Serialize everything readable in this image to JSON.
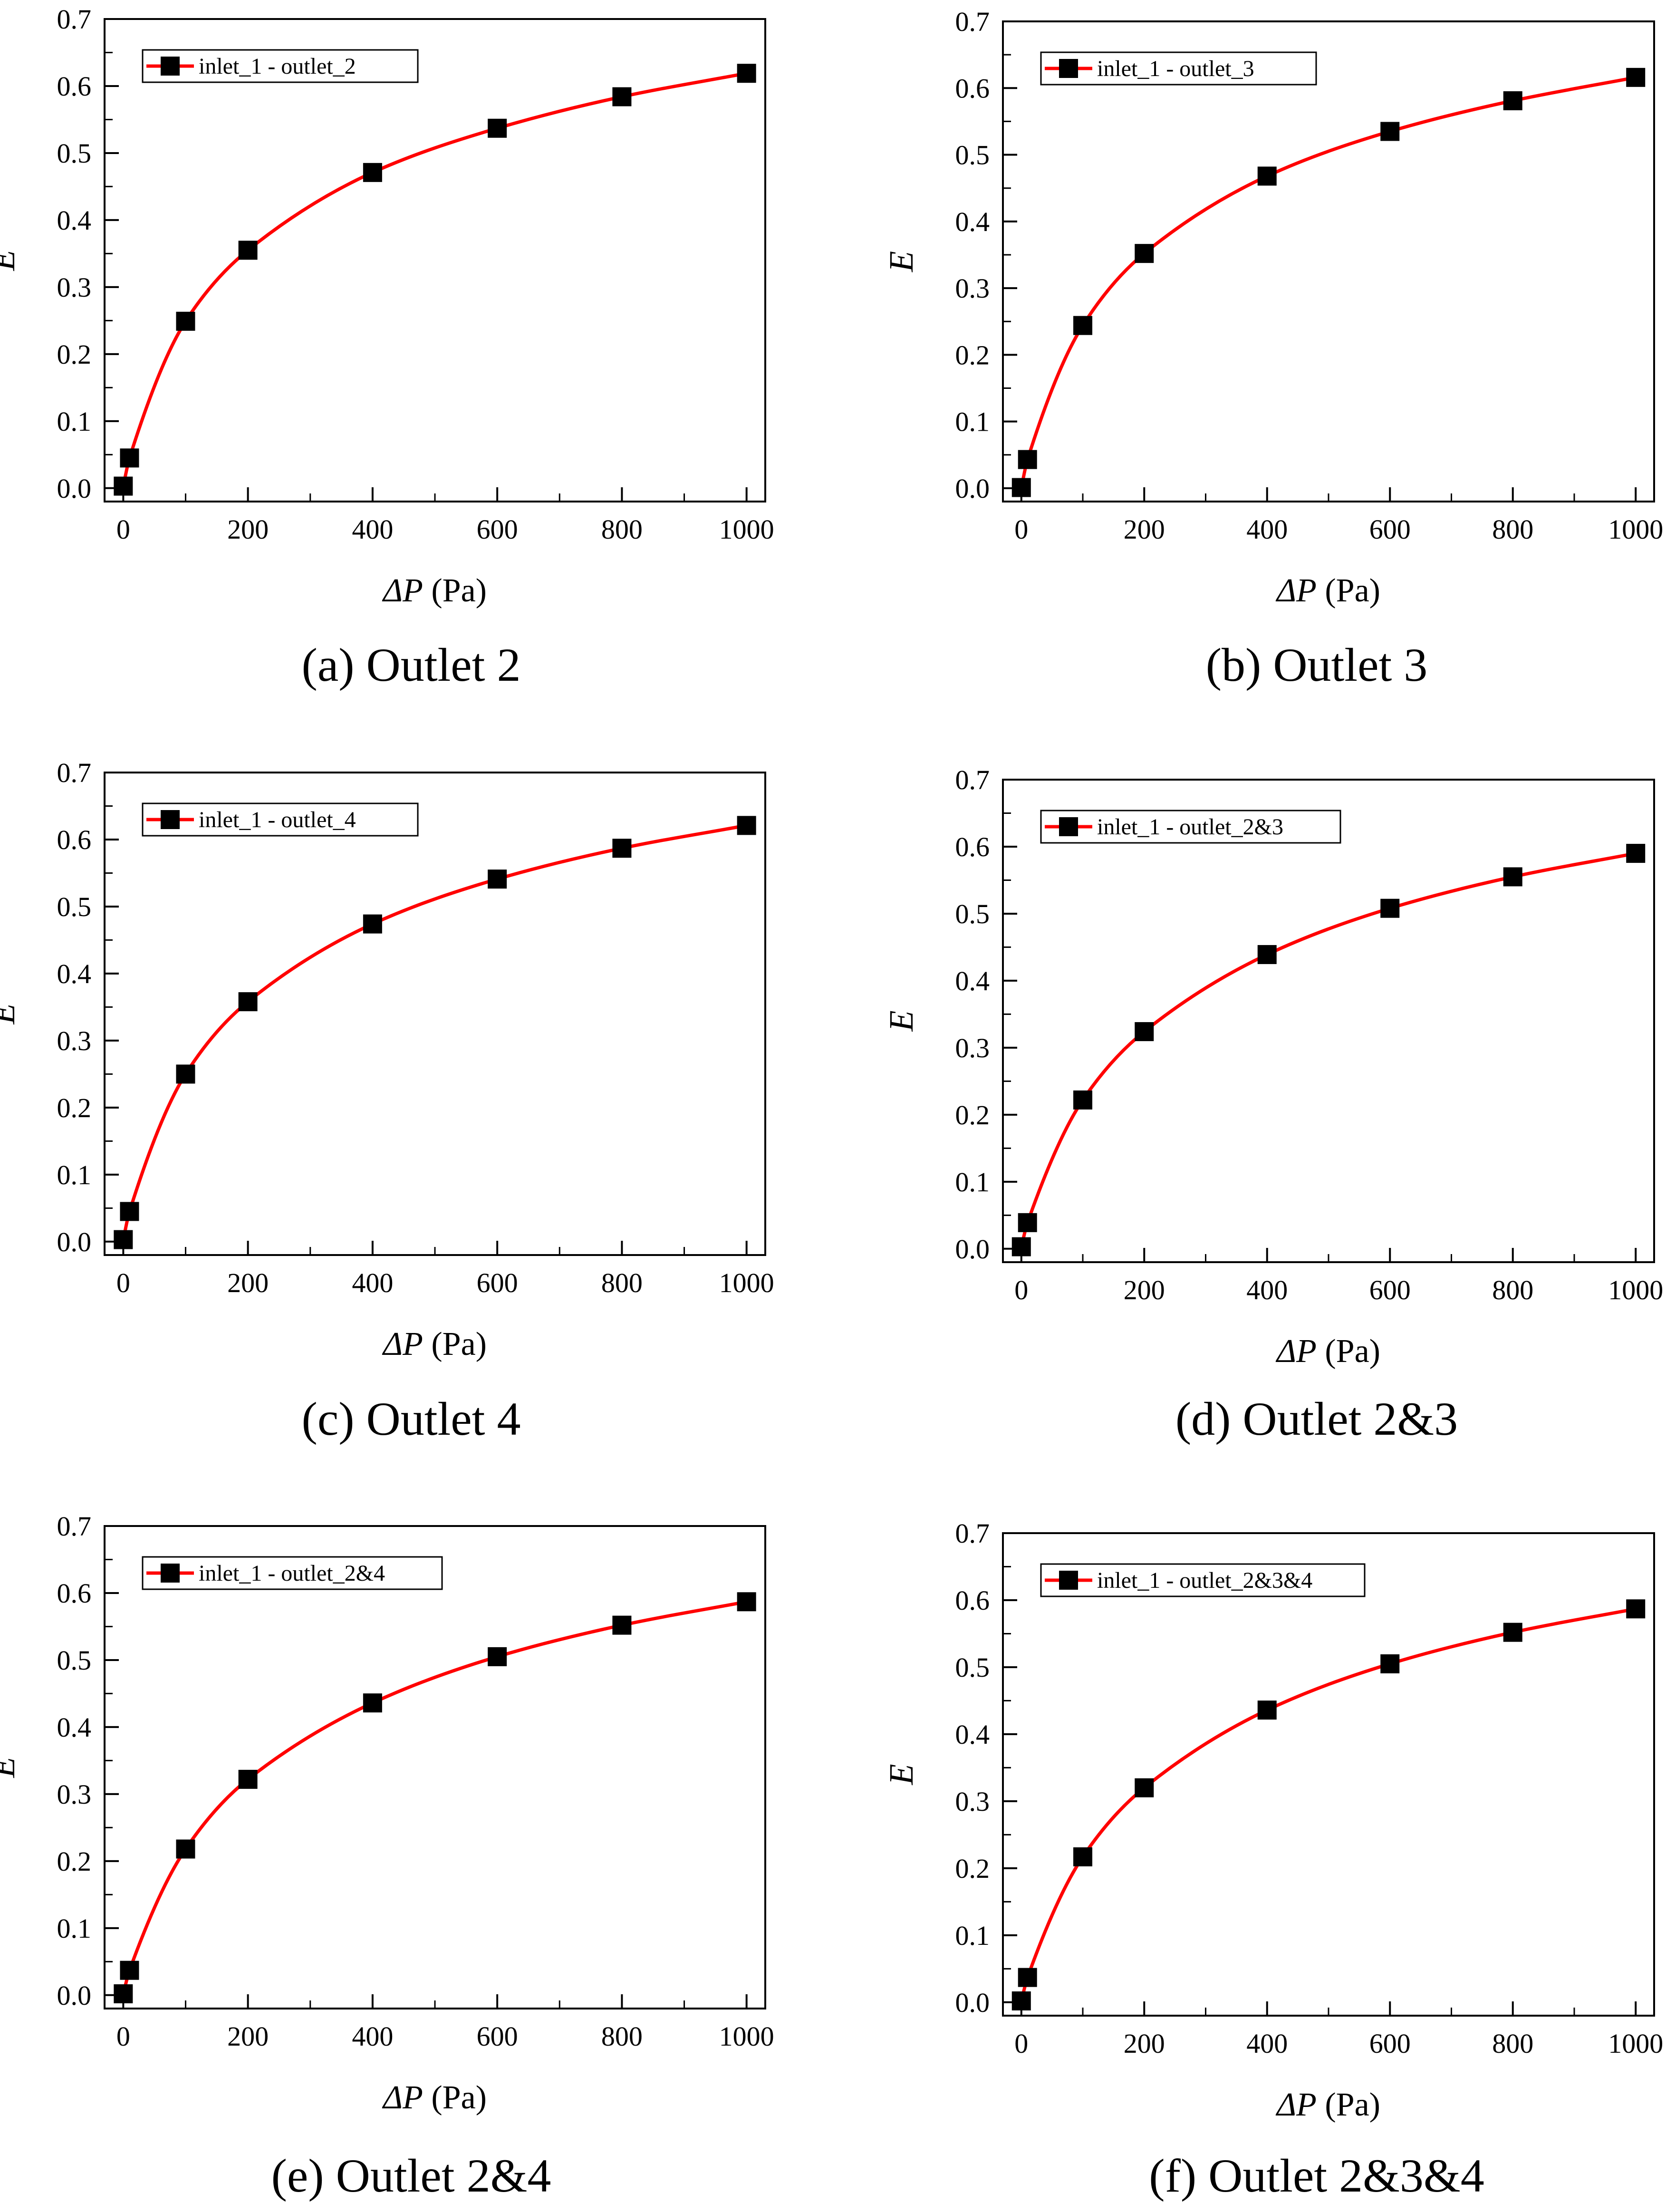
{
  "figure": {
    "panels": [
      {
        "caption": "(a) Outlet 2"
      },
      {
        "caption": "(b) Outlet 3"
      },
      {
        "caption": "(c) Outlet 4"
      },
      {
        "caption": "(d) Outlet 2&3"
      },
      {
        "caption": "(e) Outlet 2&4"
      },
      {
        "caption": "(f) Outlet 2&3&4"
      }
    ]
  },
  "colors": {
    "line": "#ff0000",
    "marker": "#000000",
    "axis": "#000000"
  },
  "chart_data": [
    {
      "type": "line",
      "title": "(a) Outlet 2",
      "xlabel_symbol": "ΔP",
      "xlabel_unit": " (Pa)",
      "ylabel": "E",
      "xlim": [
        -30,
        1030
      ],
      "ylim": [
        -0.02,
        0.7
      ],
      "xticks": [
        0,
        200,
        400,
        600,
        800,
        1000
      ],
      "yticks": [
        0.0,
        0.1,
        0.2,
        0.3,
        0.4,
        0.5,
        0.6,
        0.7
      ],
      "ytick_labels": [
        "0.0",
        "0.1",
        "0.2",
        "0.3",
        "0.4",
        "0.5",
        "0.6",
        "0.7"
      ],
      "legend": {
        "position": "top-left",
        "label": "inlet_1 - outlet_2"
      },
      "series": [
        {
          "name": "inlet_1 - outlet_2",
          "x": [
            0,
            10,
            100,
            200,
            400,
            600,
            800,
            1000
          ],
          "y": [
            0.003,
            0.045,
            0.249,
            0.355,
            0.471,
            0.537,
            0.584,
            0.619
          ]
        }
      ]
    },
    {
      "type": "line",
      "title": "(b) Outlet 3",
      "xlabel_symbol": "ΔP",
      "xlabel_unit": " (Pa)",
      "ylabel": "E",
      "xlim": [
        -30,
        1030
      ],
      "ylim": [
        -0.02,
        0.7
      ],
      "xticks": [
        0,
        200,
        400,
        600,
        800,
        1000
      ],
      "yticks": [
        0.0,
        0.1,
        0.2,
        0.3,
        0.4,
        0.5,
        0.6,
        0.7
      ],
      "ytick_labels": [
        "0.0",
        "0.1",
        "0.2",
        "0.3",
        "0.4",
        "0.5",
        "0.6",
        "0.7"
      ],
      "legend": {
        "position": "top-left",
        "label": "inlet_1 - outlet_3"
      },
      "series": [
        {
          "name": "inlet_1 - outlet_3",
          "x": [
            0,
            10,
            100,
            200,
            400,
            600,
            800,
            1000
          ],
          "y": [
            0.001,
            0.043,
            0.244,
            0.352,
            0.468,
            0.535,
            0.581,
            0.616
          ]
        }
      ]
    },
    {
      "type": "line",
      "title": "(c) Outlet 4",
      "xlabel_symbol": "ΔP",
      "xlabel_unit": " (Pa)",
      "ylabel": "E",
      "xlim": [
        -30,
        1030
      ],
      "ylim": [
        -0.02,
        0.7
      ],
      "xticks": [
        0,
        200,
        400,
        600,
        800,
        1000
      ],
      "yticks": [
        0.0,
        0.1,
        0.2,
        0.3,
        0.4,
        0.5,
        0.6,
        0.7
      ],
      "ytick_labels": [
        "0.0",
        "0.1",
        "0.2",
        "0.3",
        "0.4",
        "0.5",
        "0.6",
        "0.7"
      ],
      "legend": {
        "position": "top-left",
        "label": "inlet_1 - outlet_4"
      },
      "series": [
        {
          "name": "inlet_1 - outlet_4",
          "x": [
            0,
            10,
            100,
            200,
            400,
            600,
            800,
            1000
          ],
          "y": [
            0.003,
            0.045,
            0.25,
            0.358,
            0.474,
            0.541,
            0.587,
            0.621
          ]
        }
      ]
    },
    {
      "type": "line",
      "title": "(d) Outlet 2&3",
      "xlabel_symbol": "ΔP",
      "xlabel_unit": " (Pa)",
      "ylabel": "E",
      "xlim": [
        -30,
        1030
      ],
      "ylim": [
        -0.02,
        0.7
      ],
      "xticks": [
        0,
        200,
        400,
        600,
        800,
        1000
      ],
      "yticks": [
        0.0,
        0.1,
        0.2,
        0.3,
        0.4,
        0.5,
        0.6,
        0.7
      ],
      "ytick_labels": [
        "0.0",
        "0.1",
        "0.2",
        "0.3",
        "0.4",
        "0.5",
        "0.6",
        "0.7"
      ],
      "legend": {
        "position": "top-left",
        "label": "inlet_1 - outlet_2&3"
      },
      "series": [
        {
          "name": "inlet_1 - outlet_2&3",
          "x": [
            0,
            10,
            100,
            200,
            400,
            600,
            800,
            1000
          ],
          "y": [
            0.003,
            0.039,
            0.222,
            0.324,
            0.439,
            0.508,
            0.555,
            0.59
          ]
        }
      ]
    },
    {
      "type": "line",
      "title": "(e) Outlet 2&4",
      "xlabel_symbol": "ΔP",
      "xlabel_unit": " (Pa)",
      "ylabel": "E",
      "xlim": [
        -30,
        1030
      ],
      "ylim": [
        -0.02,
        0.7
      ],
      "xticks": [
        0,
        200,
        400,
        600,
        800,
        1000
      ],
      "yticks": [
        0.0,
        0.1,
        0.2,
        0.3,
        0.4,
        0.5,
        0.6,
        0.7
      ],
      "ytick_labels": [
        "0.0",
        "0.1",
        "0.2",
        "0.3",
        "0.4",
        "0.5",
        "0.6",
        "0.7"
      ],
      "legend": {
        "position": "top-left",
        "label": "inlet_1 - outlet_2&4"
      },
      "series": [
        {
          "name": "inlet_1 - outlet_2&4",
          "x": [
            0,
            10,
            100,
            200,
            400,
            600,
            800,
            1000
          ],
          "y": [
            0.002,
            0.037,
            0.218,
            0.322,
            0.436,
            0.505,
            0.552,
            0.587
          ]
        }
      ]
    },
    {
      "type": "line",
      "title": "(f) Outlet 2&3&4",
      "xlabel_symbol": "ΔP",
      "xlabel_unit": " (Pa)",
      "ylabel": "E",
      "xlim": [
        -30,
        1030
      ],
      "ylim": [
        -0.02,
        0.7
      ],
      "xticks": [
        0,
        200,
        400,
        600,
        800,
        1000
      ],
      "yticks": [
        0.0,
        0.1,
        0.2,
        0.3,
        0.4,
        0.5,
        0.6,
        0.7
      ],
      "ytick_labels": [
        "0.0",
        "0.1",
        "0.2",
        "0.3",
        "0.4",
        "0.5",
        "0.6",
        "0.7"
      ],
      "legend": {
        "position": "top-left",
        "label": "inlet_1 - outlet_2&3&4"
      },
      "series": [
        {
          "name": "inlet_1 - outlet_2&3&4",
          "x": [
            0,
            10,
            100,
            200,
            400,
            600,
            800,
            1000
          ],
          "y": [
            0.002,
            0.037,
            0.217,
            0.32,
            0.436,
            0.505,
            0.552,
            0.587
          ]
        }
      ]
    }
  ]
}
